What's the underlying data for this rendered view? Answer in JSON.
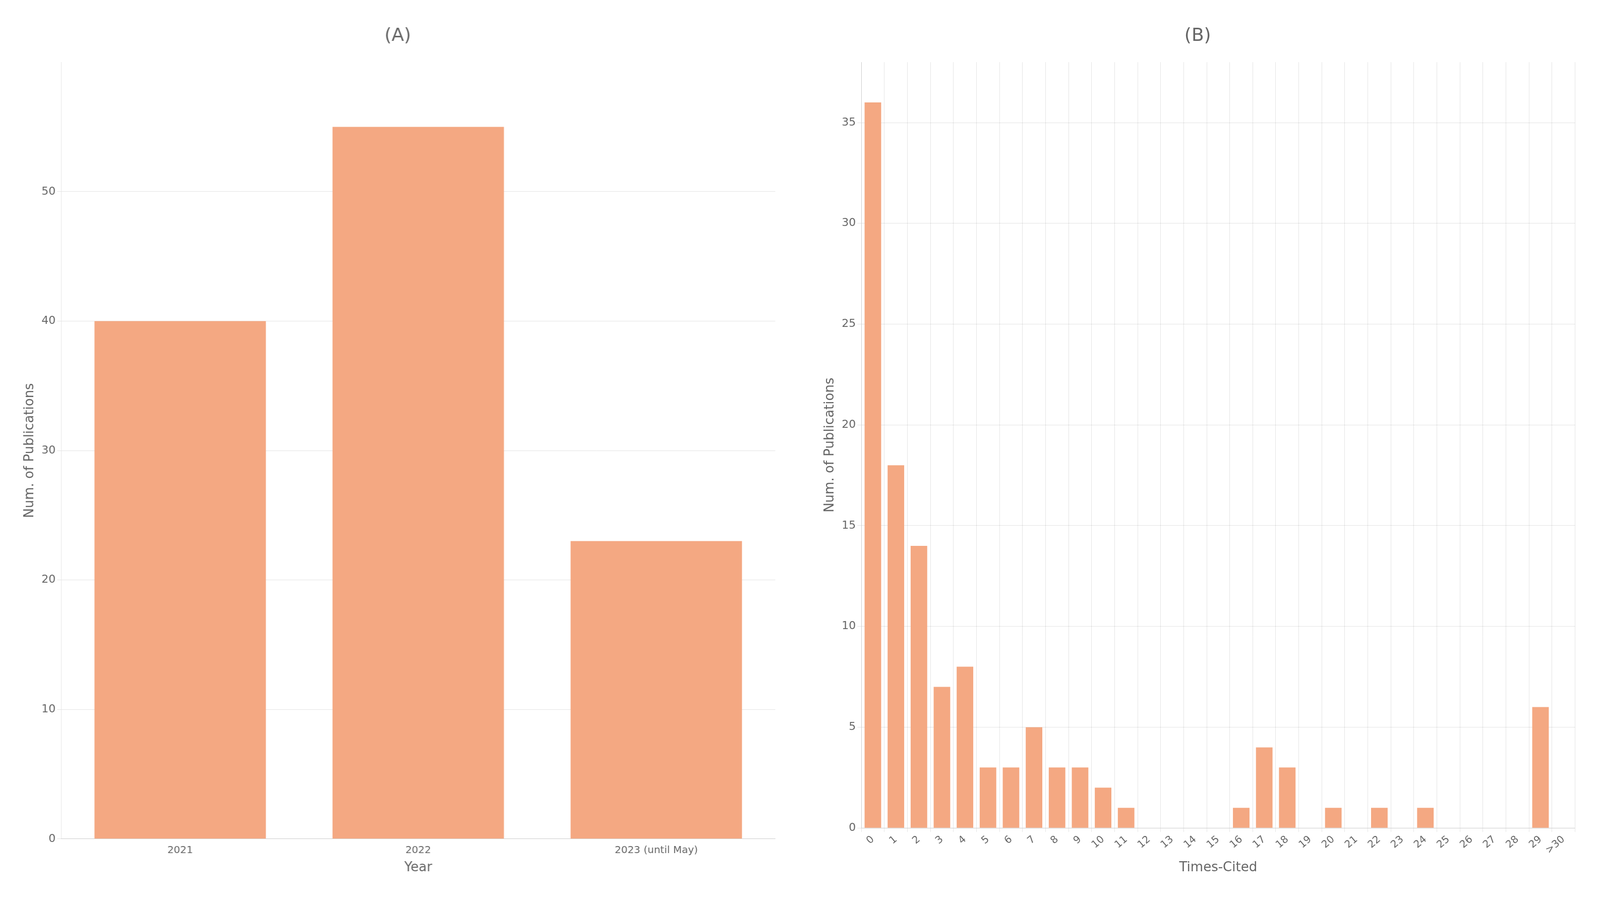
{
  "chart_data": [
    {
      "type": "bar",
      "title": "(A)",
      "xlabel": "Year",
      "ylabel": "Num. of Publications",
      "categories": [
        "2021",
        "2022",
        "2023 (until May)"
      ],
      "values": [
        40,
        55,
        23
      ],
      "color": "#F4A882",
      "ylim": [
        0,
        60
      ],
      "yticks": [
        0,
        10,
        20,
        30,
        40,
        50
      ],
      "grid": "y"
    },
    {
      "type": "bar",
      "title": "(B)",
      "xlabel": "Times-Cited",
      "ylabel": "Num. of Publications",
      "categories": [
        "0",
        "1",
        "2",
        "3",
        "4",
        "5",
        "6",
        "7",
        "8",
        "9",
        "10",
        "11",
        "12",
        "13",
        "14",
        "15",
        "16",
        "17",
        "18",
        "19",
        "20",
        "21",
        "22",
        "23",
        "24",
        "25",
        "26",
        "27",
        "28",
        "29",
        ">30"
      ],
      "values": [
        36,
        18,
        14,
        7,
        8,
        3,
        3,
        5,
        3,
        3,
        2,
        1,
        0,
        0,
        0,
        0,
        1,
        4,
        3,
        0,
        1,
        0,
        1,
        0,
        1,
        0,
        0,
        0,
        0,
        6,
        0
      ],
      "color": "#F4A882",
      "ylim": [
        0,
        38
      ],
      "yticks": [
        0,
        5,
        10,
        15,
        20,
        25,
        30,
        35
      ],
      "grid": true
    }
  ]
}
